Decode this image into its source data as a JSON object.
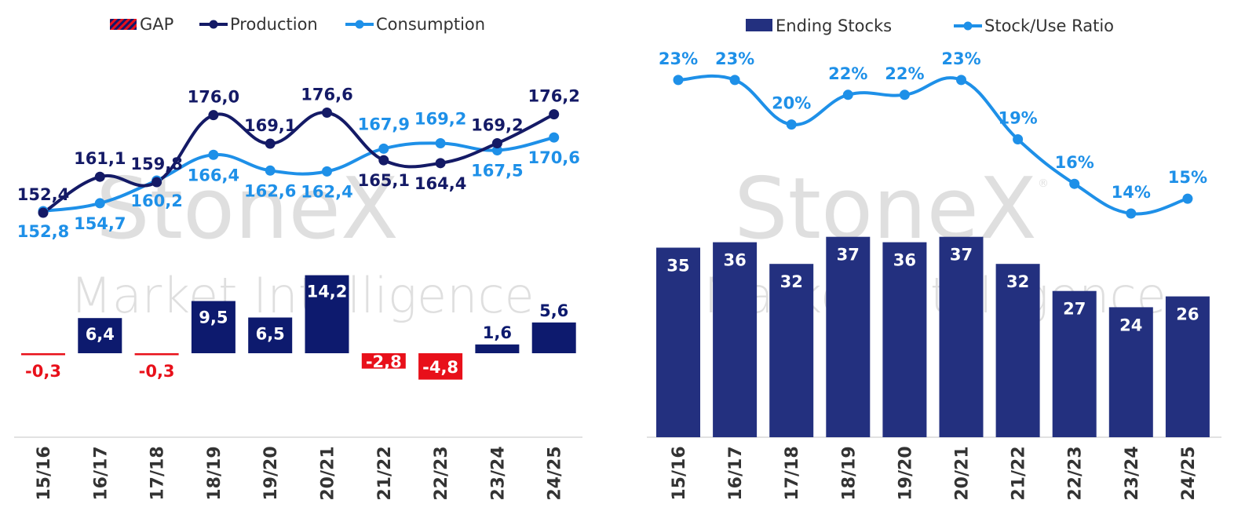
{
  "watermark": {
    "brand": "StoneX",
    "sub": "Market Intelligence",
    "mark": "®"
  },
  "chart_data": [
    {
      "type": "bar+line",
      "categories": [
        "15/16",
        "16/17",
        "17/18",
        "18/19",
        "19/20",
        "20/21",
        "21/22",
        "22/23",
        "23/24",
        "24/25"
      ],
      "legend": {
        "placement": "top",
        "items": [
          "GAP",
          "Production",
          "Consumption"
        ]
      },
      "series": [
        {
          "name": "GAP",
          "kind": "bar",
          "values": [
            -0.3,
            6.4,
            -0.3,
            9.5,
            6.5,
            14.2,
            -2.8,
            -4.8,
            1.6,
            5.6
          ],
          "labels": [
            "-0,3",
            "6,4",
            "-0,3",
            "9,5",
            "6,5",
            "14,2",
            "-2,8",
            "-4,8",
            "1,6",
            "5,6"
          ]
        },
        {
          "name": "Production",
          "kind": "line",
          "values": [
            152.4,
            161.1,
            159.8,
            176.0,
            169.1,
            176.6,
            165.1,
            164.4,
            169.2,
            176.2
          ],
          "labels": [
            "152,4",
            "161,1",
            "159,8",
            "176,0",
            "169,1",
            "176,6",
            "165,1",
            "164,4",
            "169,2",
            "176,2"
          ]
        },
        {
          "name": "Consumption",
          "kind": "line",
          "values": [
            152.8,
            154.7,
            160.2,
            166.4,
            162.6,
            162.4,
            167.9,
            169.2,
            167.5,
            170.6
          ],
          "labels": [
            "152,8",
            "154,7",
            "160,2",
            "166,4",
            "162,6",
            "162,4",
            "167,9",
            "169,2",
            "167,5",
            "170,6"
          ]
        }
      ],
      "colors": {
        "gap_positive": "#0d1a6e",
        "gap_negative": "#e8101a",
        "production": "#141a66",
        "consumption": "#1e90e8"
      },
      "grid": false
    },
    {
      "type": "bar+line",
      "categories": [
        "15/16",
        "16/17",
        "17/18",
        "18/19",
        "19/20",
        "20/21",
        "21/22",
        "22/23",
        "23/24",
        "24/25"
      ],
      "legend": {
        "placement": "top",
        "items": [
          "Ending Stocks",
          "Stock/Use Ratio"
        ]
      },
      "series": [
        {
          "name": "Ending Stocks",
          "kind": "bar",
          "values": [
            35,
            36,
            32,
            37,
            36,
            37,
            32,
            27,
            24,
            26
          ],
          "labels": [
            "35",
            "36",
            "32",
            "37",
            "36",
            "37",
            "32",
            "27",
            "24",
            "26"
          ]
        },
        {
          "name": "Stock/Use Ratio",
          "kind": "line",
          "values": [
            23,
            23,
            20,
            22,
            22,
            23,
            19,
            16,
            14,
            15
          ],
          "labels": [
            "23%",
            "23%",
            "20%",
            "22%",
            "22%",
            "23%",
            "19%",
            "16%",
            "14%",
            "15%"
          ]
        }
      ],
      "colors": {
        "bar": "#23307f",
        "line": "#1e90e8"
      },
      "grid": false
    }
  ]
}
